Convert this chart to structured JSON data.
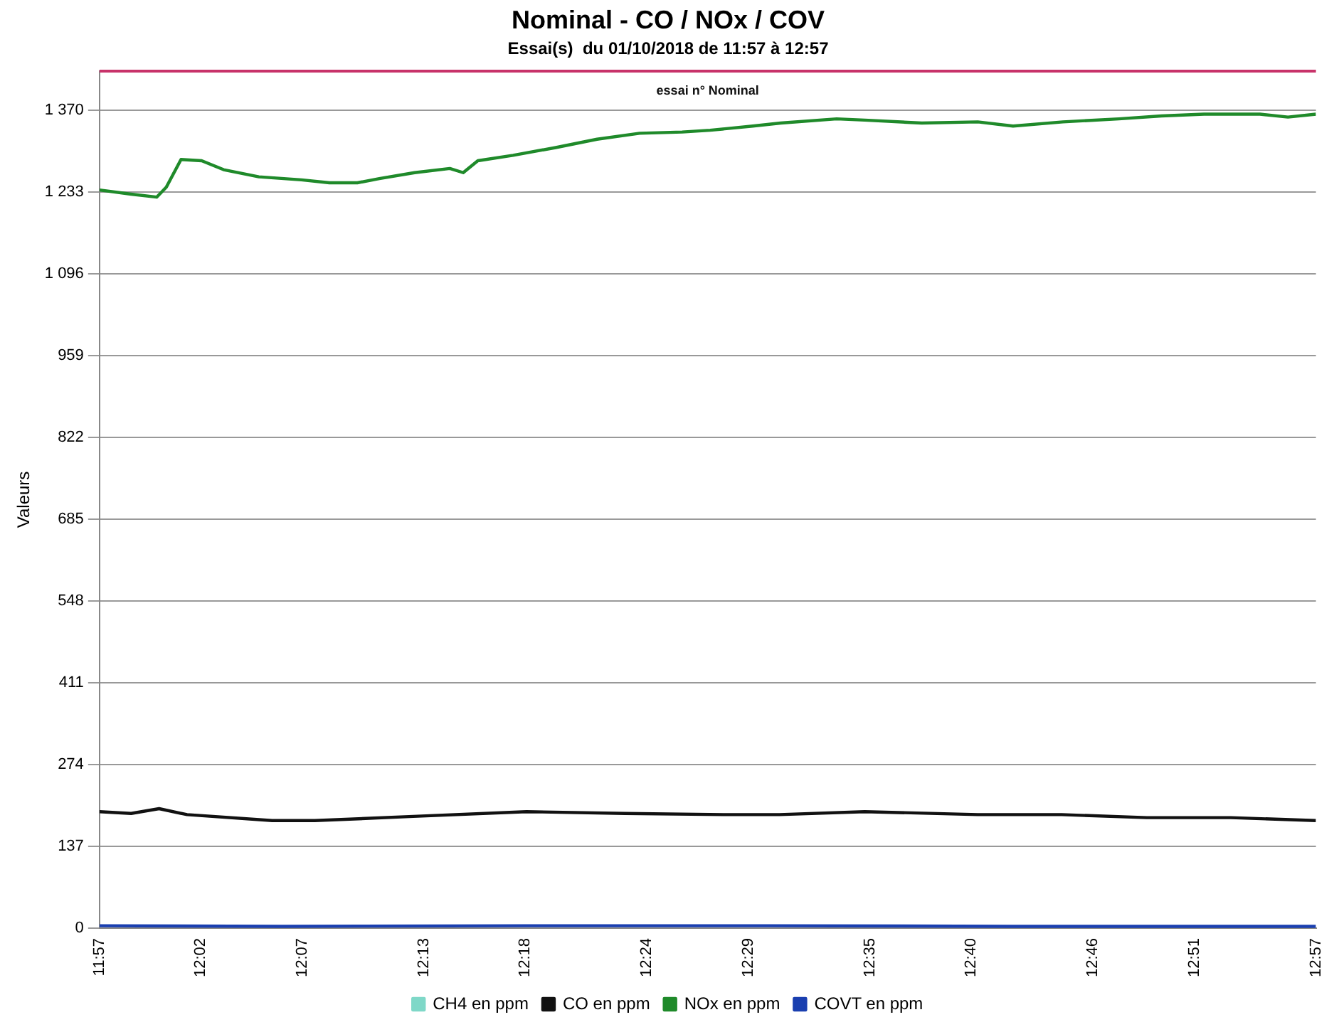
{
  "chart_data": {
    "type": "line",
    "title": "Nominal - CO / NOx / COV",
    "subtitle": "Essai(s)  du 01/10/2018 de 11:57 à 12:57",
    "ylabel": "Valeurs",
    "annotations": [
      "essai n° Nominal"
    ],
    "xlim": [
      11.95,
      12.95
    ],
    "xticks": [
      {
        "value": 11.95,
        "label": "11:57"
      },
      {
        "value": 12.0333,
        "label": "12:02"
      },
      {
        "value": 12.1167,
        "label": "12:07"
      },
      {
        "value": 12.2167,
        "label": "12:13"
      },
      {
        "value": 12.3,
        "label": "12:18"
      },
      {
        "value": 12.4,
        "label": "12:24"
      },
      {
        "value": 12.4833,
        "label": "12:29"
      },
      {
        "value": 12.5833,
        "label": "12:35"
      },
      {
        "value": 12.6667,
        "label": "12:40"
      },
      {
        "value": 12.7667,
        "label": "12:46"
      },
      {
        "value": 12.85,
        "label": "12:51"
      },
      {
        "value": 12.95,
        "label": "12:57"
      }
    ],
    "ylim": [
      0,
      1435
    ],
    "yticks": [
      0,
      137,
      274,
      411,
      548,
      685,
      822,
      959,
      {
        "value": 1096,
        "label": "1 096"
      },
      {
        "value": 1233,
        "label": "1 233"
      },
      {
        "value": 1370,
        "label": "1 370"
      }
    ],
    "grid": "y",
    "legend": "bottom",
    "marker": "none",
    "line_style": "solid",
    "ref_lines": [
      {
        "axis": "y",
        "value": 1435,
        "color": "#c8336a"
      }
    ],
    "series": [
      {
        "name": "CH4 en ppm",
        "color": "#7fd8c8"
      },
      {
        "name": "CO en ppm",
        "color": "#111111",
        "x": [
          11.95,
          11.976,
          11.999,
          12.022,
          12.092,
          12.127,
          12.208,
          12.301,
          12.382,
          12.463,
          12.509,
          12.579,
          12.672,
          12.741,
          12.811,
          12.88,
          12.95
        ],
        "values": [
          195,
          192,
          200,
          190,
          180,
          180,
          187,
          195,
          192,
          190,
          190,
          195,
          190,
          190,
          185,
          185,
          180
        ]
      },
      {
        "name": "NOx en ppm",
        "color": "#1f8a2a",
        "x": [
          11.95,
          11.976,
          11.997,
          12.005,
          12.017,
          12.034,
          12.052,
          12.081,
          12.116,
          12.139,
          12.162,
          12.18,
          12.209,
          12.238,
          12.249,
          12.261,
          12.29,
          12.325,
          12.359,
          12.394,
          12.429,
          12.452,
          12.487,
          12.51,
          12.556,
          12.579,
          12.626,
          12.672,
          12.701,
          12.742,
          12.788,
          12.823,
          12.858,
          12.904,
          12.927,
          12.95
        ],
        "values": [
          1236,
          1229,
          1224,
          1241,
          1287,
          1285,
          1270,
          1258,
          1253,
          1248,
          1248,
          1255,
          1265,
          1272,
          1265,
          1285,
          1294,
          1307,
          1321,
          1331,
          1333,
          1336,
          1343,
          1348,
          1355,
          1353,
          1348,
          1350,
          1343,
          1350,
          1355,
          1360,
          1363,
          1363,
          1358,
          1363
        ]
      },
      {
        "name": "COVT en ppm",
        "color": "#1a3fb0",
        "x": [
          11.95,
          12.1,
          12.3,
          12.5,
          12.7,
          12.95
        ],
        "values": [
          4,
          3,
          4,
          4,
          3,
          3
        ]
      }
    ]
  }
}
